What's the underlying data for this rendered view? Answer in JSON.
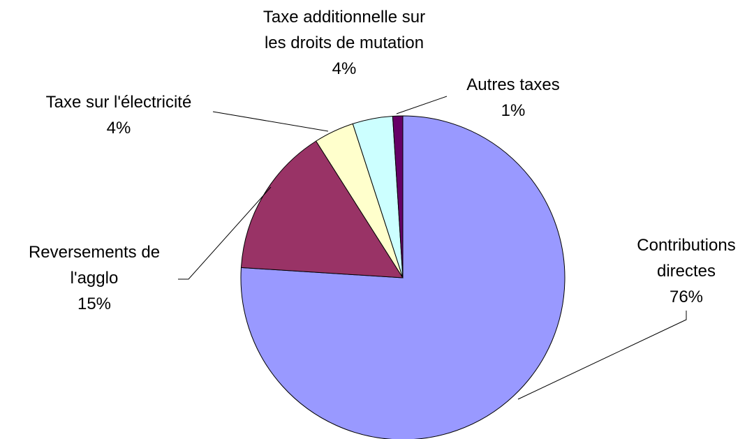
{
  "chart_data": {
    "type": "pie",
    "categories": [
      "Contributions directes",
      "Reversements de l'agglo",
      "Taxe sur l'électricité",
      "Taxe additionnelle sur les droits de mutation",
      "Autres taxes"
    ],
    "values": [
      76,
      15,
      4,
      4,
      1
    ],
    "value_labels": [
      "76%",
      "15%",
      "4%",
      "4%",
      "1%"
    ],
    "colors": [
      "#9999ff",
      "#993366",
      "#ffffcc",
      "#ccffff",
      "#660066"
    ]
  }
}
